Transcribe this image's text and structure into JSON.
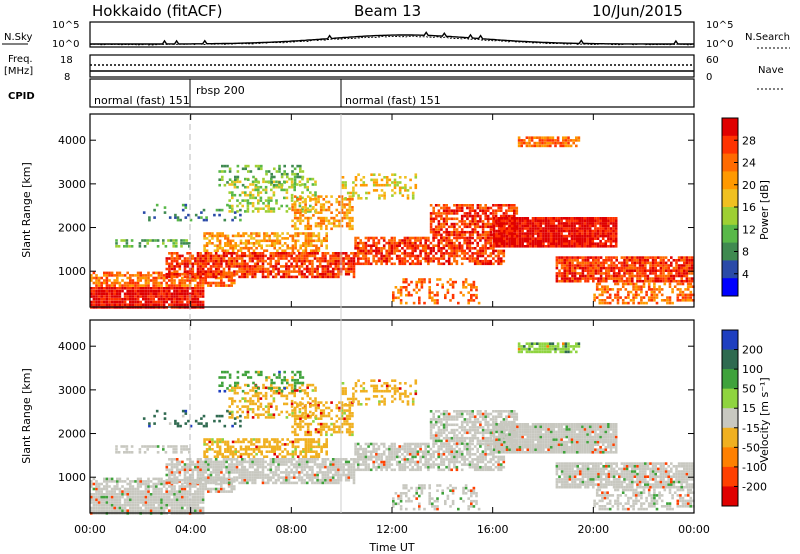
{
  "header": {
    "station": "Hokkaido (fitACF)",
    "beam": "Beam 13",
    "date": "10/Jun/2015"
  },
  "strip_labels": {
    "noise_sky": "N.Sky",
    "noise_search": "N.Search",
    "freq_top": "Freq.",
    "freq_unit": "[MHz]",
    "cpid": "CPID",
    "nave": "Nave",
    "noise_left_ticks": [
      "10^5",
      "10^0"
    ],
    "noise_right_ticks": [
      "10^5",
      "10^0"
    ],
    "freq_left_ticks": [
      "18",
      "8"
    ],
    "freq_right_ticks": [
      "60",
      "0"
    ]
  },
  "cpid_segments": [
    {
      "label": "normal (fast) 151"
    },
    {
      "label": "rbsp 200"
    },
    {
      "label": "normal (fast) 151"
    }
  ],
  "x_axis": {
    "label": "Time UT",
    "ticks": [
      "00:00",
      "04:00",
      "08:00",
      "12:00",
      "16:00",
      "20:00",
      "00:00"
    ]
  },
  "colors": {
    "power": [
      "#0000ff",
      "#2a4aa8",
      "#3f8a50",
      "#58b848",
      "#9ed033",
      "#f0c020",
      "#ff9900",
      "#ff6a00",
      "#ff3300",
      "#e00000"
    ],
    "velocity": [
      "#1f3fc0",
      "#2f6a50",
      "#3fa23b",
      "#8fd43f",
      "#c8c8c0",
      "#f0b020",
      "#ff8000",
      "#ff4000",
      "#e00000"
    ]
  },
  "chart_data": [
    {
      "type": "heatmap",
      "name": "power",
      "ylabel": "Slant Range [km]",
      "yticks": [
        "1000",
        "2000",
        "3000",
        "4000"
      ],
      "ylim": [
        180,
        4600
      ],
      "xlim_hours": [
        0,
        24
      ],
      "colorbar": {
        "label": "Power [dB]",
        "ticks": [
          "4",
          "8",
          "12",
          "16",
          "20",
          "24",
          "28"
        ]
      }
    },
    {
      "type": "heatmap",
      "name": "velocity",
      "ylabel": "Slant Range [km]",
      "yticks": [
        "1000",
        "2000",
        "3000",
        "4000"
      ],
      "ylim": [
        180,
        4600
      ],
      "xlim_hours": [
        0,
        24
      ],
      "colorbar": {
        "label": "Velocity [m s⁻¹]",
        "ticks": [
          "200",
          "100",
          "50",
          "15",
          "-15",
          "-50",
          "-100",
          "-200"
        ]
      }
    }
  ]
}
